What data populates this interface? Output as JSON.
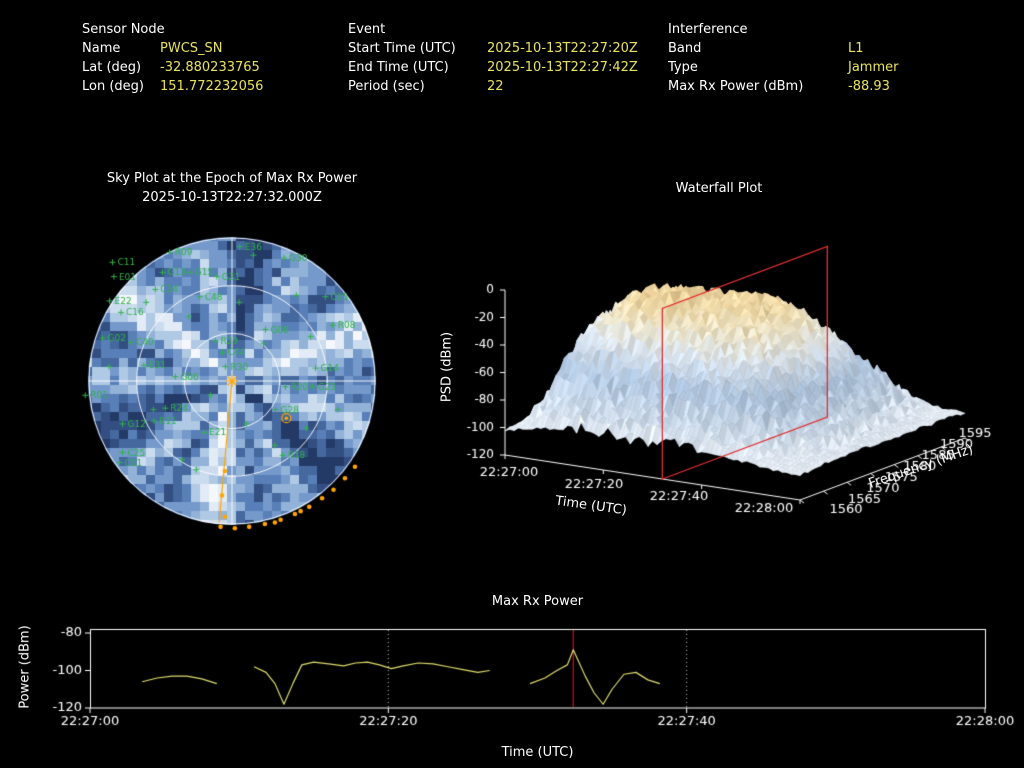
{
  "header": {
    "sensor_node": {
      "title": "Sensor Node",
      "rows": [
        {
          "label": "Name",
          "value": "PWCS_SN"
        },
        {
          "label": "Lat (deg)",
          "value": "-32.880233765"
        },
        {
          "label": "Lon (deg)",
          "value": "151.772232056"
        }
      ]
    },
    "event": {
      "title": "Event",
      "rows": [
        {
          "label": "Start Time (UTC)",
          "value": "2025-10-13T22:27:20Z"
        },
        {
          "label": "End Time (UTC)",
          "value": "2025-10-13T22:27:42Z"
        },
        {
          "label": "Period (sec)",
          "value": "22"
        }
      ]
    },
    "interference": {
      "title": "Interference",
      "rows": [
        {
          "label": "Band",
          "value": "L1"
        },
        {
          "label": "Type",
          "value": "Jammer"
        },
        {
          "label": "Max Rx Power (dBm)",
          "value": "-88.93"
        }
      ]
    }
  },
  "colors": {
    "background": "#000000",
    "label_text": "#ffffff",
    "value_text": "#e8e25f",
    "satellite_green": "#2fb34a",
    "track_orange": "#ffa500",
    "power_line": "#dedb70",
    "epoch_red": "#cc1111",
    "slice_red": "#e03030",
    "axis": "#ffffff"
  },
  "chart_data": [
    {
      "name": "sky_plot",
      "type": "scatter",
      "projection": "polar_sky",
      "title": "Sky Plot at the Epoch of Max Rx Power",
      "subtitle": "2025-10-13T22:27:32.000Z",
      "elevation_rings_deg": [
        0,
        30,
        60
      ],
      "tile_palette": [
        "#f4f7fb",
        "#e2ebf6",
        "#cbdcee",
        "#b0c9e4",
        "#92b2d8",
        "#7499ca",
        "#597fb8",
        "#45689f",
        "#334f82",
        "#243a66"
      ],
      "satellites": [
        {
          "id": "C11",
          "u": -0.78,
          "v": -0.83
        },
        {
          "id": "R09",
          "u": -0.38,
          "v": -0.9
        },
        {
          "id": "E36",
          "u": 0.11,
          "v": -0.94
        },
        {
          "id": "G30",
          "u": 0.42,
          "v": -0.86
        },
        {
          "id": "E01",
          "u": -0.77,
          "v": -0.73
        },
        {
          "id": "G13",
          "u": -0.43,
          "v": -0.76
        },
        {
          "id": "G15",
          "u": -0.24,
          "v": -0.76
        },
        {
          "id": "G21",
          "u": -0.05,
          "v": -0.73
        },
        {
          "id": "C34",
          "u": -0.48,
          "v": -0.64
        },
        {
          "id": "C05",
          "u": 0.71,
          "v": -0.59
        },
        {
          "id": "E22",
          "u": -0.8,
          "v": -0.56
        },
        {
          "id": "C48",
          "u": -0.17,
          "v": -0.59
        },
        {
          "id": "C16",
          "u": -0.72,
          "v": -0.48
        },
        {
          "id": "R08",
          "u": 0.76,
          "v": -0.39
        },
        {
          "id": "G08",
          "u": 0.29,
          "v": -0.36
        },
        {
          "id": "G02",
          "u": -0.85,
          "v": -0.3
        },
        {
          "id": "C40",
          "u": -0.65,
          "v": -0.27
        },
        {
          "id": "R29",
          "u": -0.06,
          "v": -0.28
        },
        {
          "id": "C44",
          "u": -0.01,
          "v": -0.2
        },
        {
          "id": "G14",
          "u": 0.64,
          "v": -0.09
        },
        {
          "id": "E31",
          "u": -0.56,
          "v": -0.11
        },
        {
          "id": "R30",
          "u": 0.01,
          "v": -0.1
        },
        {
          "id": "G06",
          "u": -0.34,
          "v": -0.03
        },
        {
          "id": "R01",
          "u": -0.97,
          "v": 0.1
        },
        {
          "id": "R20",
          "u": 0.43,
          "v": 0.04
        },
        {
          "id": "G23",
          "u": 0.62,
          "v": 0.04
        },
        {
          "id": "R24",
          "u": -0.41,
          "v": 0.19
        },
        {
          "id": "G28",
          "u": 0.36,
          "v": 0.2
        },
        {
          "id": "R11",
          "u": -0.49,
          "v": 0.28
        },
        {
          "id": "G12",
          "u": -0.71,
          "v": 0.3
        },
        {
          "id": "E21",
          "u": -0.14,
          "v": 0.36
        },
        {
          "id": "C25",
          "u": -0.71,
          "v": 0.5
        },
        {
          "id": "C01",
          "u": -0.73,
          "v": 0.57
        },
        {
          "id": "R18",
          "u": 0.41,
          "v": 0.52
        }
      ],
      "extra_markers": [
        [
          -0.3,
          -0.45
        ],
        [
          0.05,
          -0.55
        ],
        [
          0.22,
          -0.26
        ],
        [
          0.55,
          -0.31
        ],
        [
          -0.15,
          0.1
        ],
        [
          0.3,
          0.45
        ],
        [
          -0.55,
          0.2
        ],
        [
          0.1,
          0.3
        ],
        [
          0.45,
          -0.6
        ],
        [
          -0.86,
          -0.1
        ],
        [
          0.74,
          0.2
        ],
        [
          -0.35,
          0.55
        ],
        [
          0.15,
          -0.88
        ],
        [
          -0.6,
          -0.55
        ],
        [
          0.52,
          0.33
        ],
        [
          -0.25,
          0.62
        ]
      ],
      "track_points": [
        [
          0.86,
          0.6
        ],
        [
          0.79,
          0.68
        ],
        [
          0.71,
          0.76
        ],
        [
          0.63,
          0.82
        ],
        [
          0.54,
          0.88
        ],
        [
          0.44,
          0.93
        ],
        [
          0.34,
          0.97
        ],
        [
          0.23,
          1.0
        ],
        [
          0.12,
          1.02
        ],
        [
          0.02,
          1.03
        ],
        [
          -0.08,
          1.02
        ],
        [
          -0.05,
          0.95
        ],
        [
          -0.07,
          0.8
        ],
        [
          -0.05,
          0.63
        ],
        [
          0.3,
          0.99
        ],
        [
          0.48,
          0.91
        ]
      ],
      "bearing_line_end": {
        "u": -0.09,
        "v": 0.99
      },
      "ringed_point": {
        "u": 0.38,
        "v": 0.26
      }
    },
    {
      "name": "waterfall",
      "type": "heatmap",
      "render": "3d_surface",
      "title": "Waterfall Plot",
      "xlabel": "Time (UTC)",
      "ylabel": "Frequency (MHz)",
      "zlabel": "PSD (dBm)",
      "time_ticks": [
        "22:27:00",
        "22:27:20",
        "22:27:40",
        "22:28:00"
      ],
      "freq_ticks": [
        1560,
        1565,
        1570,
        1575,
        1580,
        1585,
        1590,
        1595
      ],
      "psd_ticks": [
        0,
        -20,
        -40,
        -60,
        -80,
        -100,
        -120
      ],
      "psd_range": [
        -120,
        0
      ],
      "epoch_slice_time_s": 32,
      "surface_stops": [
        [
          -120,
          "#f3f7fb"
        ],
        [
          -100,
          "#e9f0f8"
        ],
        [
          -84,
          "#cfdeee"
        ],
        [
          -64,
          "#b2c9e3"
        ],
        [
          -46,
          "#dde7f2"
        ],
        [
          -32,
          "#efe9d4"
        ],
        [
          -20,
          "#f3dfae"
        ],
        [
          -8,
          "#eecf94"
        ]
      ],
      "grid": {
        "time_s": [
          0,
          5,
          10,
          15,
          20,
          25,
          30,
          35,
          40,
          45,
          50,
          55,
          60
        ],
        "freq_mhz": [
          1560,
          1562.5,
          1565,
          1567.5,
          1570,
          1572.5,
          1575,
          1577.5,
          1580,
          1582.5,
          1585,
          1587.5,
          1590,
          1592.5,
          1595
        ],
        "psd_dbm": [
          [
            -102,
            -101,
            -100,
            -100,
            -101,
            -100,
            -99,
            -100,
            -100,
            -101,
            -100,
            -100,
            -101,
            -100,
            -102
          ],
          [
            -98,
            -90,
            -75,
            -60,
            -48,
            -42,
            -40,
            -38,
            -42,
            -48,
            -55,
            -65,
            -75,
            -85,
            -95
          ],
          [
            -95,
            -80,
            -60,
            -45,
            -32,
            -25,
            -22,
            -20,
            -24,
            -30,
            -38,
            -50,
            -62,
            -75,
            -90
          ],
          [
            -92,
            -75,
            -55,
            -38,
            -22,
            -15,
            -13,
            -14,
            -18,
            -25,
            -33,
            -45,
            -58,
            -72,
            -88
          ],
          [
            -93,
            -76,
            -56,
            -40,
            -25,
            -16,
            -12,
            -13,
            -16,
            -22,
            -30,
            -44,
            -56,
            -70,
            -87
          ],
          [
            -94,
            -78,
            -58,
            -42,
            -30,
            -24,
            -20,
            -18,
            -17,
            -20,
            -28,
            -42,
            -55,
            -68,
            -86
          ],
          [
            -93,
            -77,
            -57,
            -41,
            -28,
            -22,
            -18,
            -15,
            -14,
            -18,
            -26,
            -40,
            -54,
            -67,
            -85
          ],
          [
            -94,
            -78,
            -58,
            -43,
            -32,
            -26,
            -22,
            -18,
            -16,
            -20,
            -28,
            -42,
            -55,
            -68,
            -86
          ],
          [
            -95,
            -80,
            -62,
            -48,
            -38,
            -32,
            -28,
            -26,
            -25,
            -28,
            -34,
            -46,
            -58,
            -70,
            -88
          ],
          [
            -97,
            -86,
            -72,
            -60,
            -52,
            -48,
            -45,
            -44,
            -45,
            -48,
            -52,
            -60,
            -68,
            -78,
            -92
          ],
          [
            -99,
            -93,
            -85,
            -78,
            -74,
            -72,
            -70,
            -70,
            -71,
            -73,
            -76,
            -80,
            -85,
            -90,
            -97
          ],
          [
            -101,
            -98,
            -95,
            -92,
            -90,
            -89,
            -88,
            -89,
            -90,
            -91,
            -93,
            -95,
            -97,
            -99,
            -101
          ],
          [
            -102,
            -101,
            -100,
            -100,
            -100,
            -99,
            -100,
            -100,
            -101,
            -100,
            -100,
            -101,
            -100,
            -100,
            -102
          ]
        ]
      }
    },
    {
      "name": "max_rx_power",
      "type": "line",
      "title": "Max Rx Power",
      "xlabel": "Time (UTC)",
      "ylabel": "Power (dBm)",
      "x_ticks": [
        "22:27:00",
        "22:27:20",
        "22:27:40",
        "22:28:00"
      ],
      "x_tick_times_s": [
        0,
        20,
        40,
        60
      ],
      "x_range_s": [
        0,
        60
      ],
      "y_ticks": [
        -80,
        -100,
        -120
      ],
      "ylim": [
        -120,
        -80
      ],
      "marker_time_s": 32.4,
      "segments": [
        [
          [
            3.5,
            -106
          ],
          [
            4.5,
            -104
          ],
          [
            5.5,
            -103
          ],
          [
            6.5,
            -103
          ],
          [
            7.5,
            -104.5
          ],
          [
            8.5,
            -107
          ]
        ],
        [
          [
            11,
            -98
          ],
          [
            11.8,
            -101
          ],
          [
            12.4,
            -107
          ],
          [
            13,
            -118
          ],
          [
            13.6,
            -107
          ],
          [
            14.2,
            -97
          ],
          [
            15,
            -95.5
          ],
          [
            16,
            -96.5
          ],
          [
            17,
            -97.5
          ],
          [
            17.8,
            -96
          ],
          [
            18.6,
            -95.5
          ],
          [
            19.4,
            -97
          ],
          [
            20.2,
            -99
          ],
          [
            21,
            -97.5
          ],
          [
            22,
            -96
          ],
          [
            23,
            -96.5
          ],
          [
            24,
            -98
          ],
          [
            25,
            -99.5
          ],
          [
            26,
            -101
          ],
          [
            26.8,
            -100
          ]
        ],
        [
          [
            29.5,
            -107
          ],
          [
            30.5,
            -104
          ],
          [
            31.3,
            -100
          ],
          [
            32,
            -97
          ],
          [
            32.4,
            -88.93
          ],
          [
            33.2,
            -103
          ],
          [
            33.8,
            -112
          ],
          [
            34.4,
            -118
          ],
          [
            35,
            -110
          ],
          [
            35.8,
            -102
          ],
          [
            36.6,
            -101
          ],
          [
            37.4,
            -105
          ],
          [
            38.2,
            -107
          ]
        ]
      ]
    }
  ]
}
